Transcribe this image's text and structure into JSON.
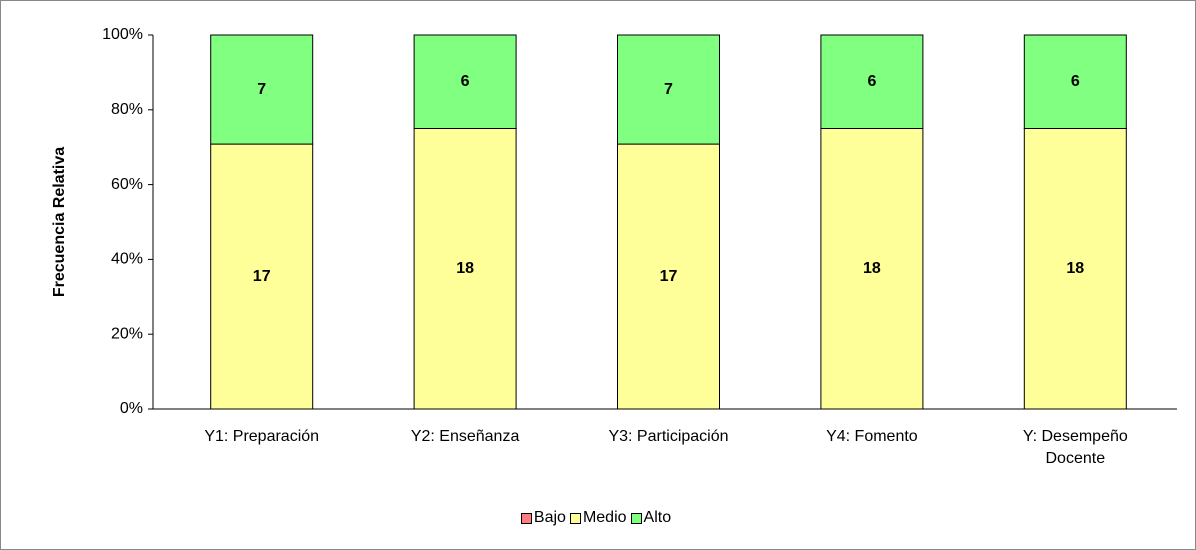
{
  "chart_data": {
    "type": "bar",
    "stacked": "percent",
    "y_label": "Frecuencia Relativa",
    "categories": [
      "Y1: Preparación",
      "Y2: Enseñanza",
      "Y3: Participación",
      "Y4: Fomento",
      "Y: Desempeño Docente"
    ],
    "series": [
      {
        "name": "Bajo",
        "color": "#ff7c80",
        "values": [
          0,
          0,
          0,
          0,
          0
        ]
      },
      {
        "name": "Medio",
        "color": "#ffff99",
        "values": [
          17,
          18,
          17,
          18,
          18
        ]
      },
      {
        "name": "Alto",
        "color": "#80ff80",
        "values": [
          7,
          6,
          7,
          6,
          6
        ]
      }
    ],
    "ylim": [
      0,
      100
    ],
    "yticks": [
      {
        "value": 0,
        "label": "0%"
      },
      {
        "value": 20,
        "label": "20%"
      },
      {
        "value": 40,
        "label": "40%"
      },
      {
        "value": 60,
        "label": "60%"
      },
      {
        "value": 80,
        "label": "80%"
      },
      {
        "value": 100,
        "label": "100%"
      }
    ],
    "legend": "bottom"
  }
}
